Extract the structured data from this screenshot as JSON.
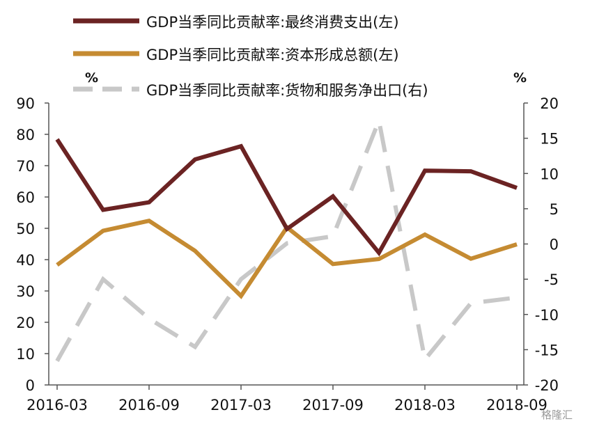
{
  "chart_data": {
    "type": "line",
    "x": [
      "2016-03",
      "2016-06",
      "2016-09",
      "2016-12",
      "2017-03",
      "2017-06",
      "2017-09",
      "2017-12",
      "2018-03",
      "2018-06",
      "2018-09"
    ],
    "x_tick_labels": [
      "2016-03",
      "2016-09",
      "2017-03",
      "2017-09",
      "2018-03",
      "2018-09"
    ],
    "left_axis": {
      "unit": "%",
      "ylim": [
        0,
        90
      ],
      "ticks": [
        "0",
        "10",
        "20",
        "30",
        "40",
        "50",
        "60",
        "70",
        "80",
        "90"
      ]
    },
    "right_axis": {
      "unit": "%",
      "ylim": [
        -20,
        20
      ],
      "ticks": [
        "-20",
        "-15",
        "-10",
        "-5",
        "0",
        "5",
        "10",
        "15",
        "20"
      ]
    },
    "series": [
      {
        "name": "GDP当季同比贡献率:最终消费支出(左)",
        "axis": "left",
        "color": "#6b2323",
        "style": "solid",
        "values": [
          78.4,
          55.9,
          58.3,
          72.0,
          76.2,
          49.8,
          60.2,
          42.2,
          68.4,
          68.2,
          62.9
        ]
      },
      {
        "name": "GDP当季同比贡献率:资本形成总额(左)",
        "axis": "left",
        "color": "#c58b32",
        "style": "solid",
        "values": [
          38.3,
          49.2,
          52.4,
          42.8,
          28.4,
          50.3,
          38.6,
          40.2,
          48.0,
          40.3,
          44.9
        ]
      },
      {
        "name": "GDP当季同比贡献率:货物和服务净出口(右)",
        "axis": "right",
        "color": "#c8c8c8",
        "style": "dashed",
        "values": [
          -16.6,
          -5.0,
          -10.6,
          -14.6,
          -5.0,
          0.1,
          1.1,
          17.5,
          -16.4,
          -8.4,
          -7.6
        ]
      }
    ],
    "legend": "top",
    "grid": false
  },
  "watermark": "格隆汇"
}
